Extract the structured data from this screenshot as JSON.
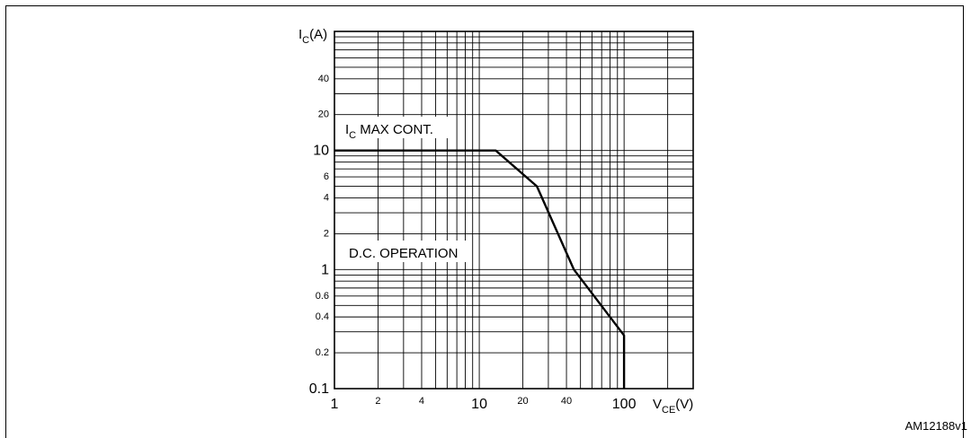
{
  "chart_data": {
    "type": "line",
    "x_scale": "log",
    "y_scale": "log",
    "xlim": [
      1,
      300
    ],
    "ylim": [
      0.1,
      100
    ],
    "x_ticks": [
      {
        "v": 1,
        "label": "1",
        "big": true
      },
      {
        "v": 2,
        "label": "2",
        "big": false
      },
      {
        "v": 4,
        "label": "4",
        "big": false
      },
      {
        "v": 10,
        "label": "10",
        "big": true
      },
      {
        "v": 20,
        "label": "20",
        "big": false
      },
      {
        "v": 40,
        "label": "40",
        "big": false
      },
      {
        "v": 100,
        "label": "100",
        "big": true
      }
    ],
    "y_ticks": [
      {
        "v": 0.1,
        "label": "0.1",
        "big": true
      },
      {
        "v": 0.2,
        "label": "0.2",
        "big": false
      },
      {
        "v": 0.4,
        "label": "0.4",
        "big": false
      },
      {
        "v": 0.6,
        "label": "0.6",
        "big": false
      },
      {
        "v": 1,
        "label": "1",
        "big": true
      },
      {
        "v": 2,
        "label": "2",
        "big": false
      },
      {
        "v": 4,
        "label": "4",
        "big": false
      },
      {
        "v": 6,
        "label": "6",
        "big": false
      },
      {
        "v": 10,
        "label": "10",
        "big": true
      },
      {
        "v": 20,
        "label": "20",
        "big": false
      },
      {
        "v": 40,
        "label": "40",
        "big": false
      }
    ],
    "y_axis_label": {
      "main": "I",
      "sub": "C",
      "unit": "(A)"
    },
    "x_axis_label": {
      "main": "V",
      "sub": "CE",
      "unit": "(V)"
    },
    "annotations": {
      "ic_max": {
        "main": "I",
        "sub": "C",
        "text": " MAX CONT."
      },
      "dc_operation": "D.C. OPERATION"
    },
    "series": [
      {
        "x": [
          1,
          13,
          25,
          45,
          100,
          100
        ],
        "y": [
          10,
          10,
          5,
          1,
          0.28,
          0.1
        ]
      }
    ],
    "grid": true
  },
  "reference": "AM12188v1"
}
